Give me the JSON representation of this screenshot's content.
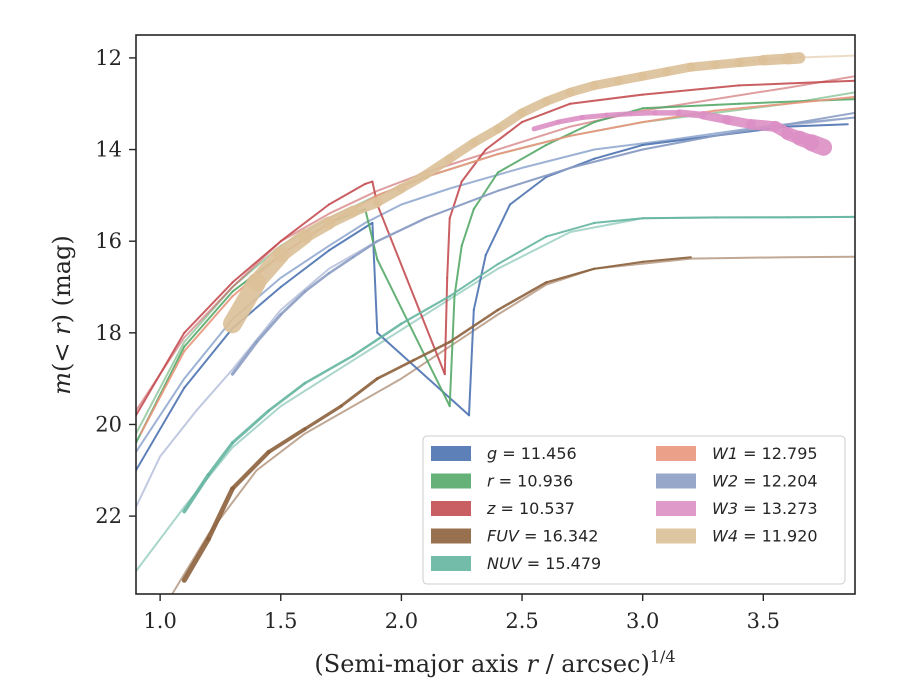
{
  "chart_data": {
    "type": "line",
    "title": "",
    "xlabel": "(Semi-major axis r / arcsec)^1/4",
    "ylabel": "m(< r) (mag)",
    "xlim": [
      0.9,
      3.88
    ],
    "ylim": [
      23.7,
      11.5
    ],
    "y_inverted": true,
    "grid": false,
    "legend_position": "lower-right",
    "legend_columns": 2,
    "xticks": [
      "1.0",
      "1.5",
      "2.0",
      "2.5",
      "3.0",
      "3.5"
    ],
    "yticks": [
      "12",
      "14",
      "16",
      "18",
      "20",
      "22"
    ],
    "series": [
      {
        "name": "g = 11.456",
        "var": "g",
        "value": "11.456",
        "color": "#4c72b0",
        "x": [
          0.9,
          1.1,
          1.3,
          1.5,
          1.7,
          1.85,
          1.88,
          1.9,
          2.28,
          2.3,
          2.35,
          2.45,
          2.6,
          2.8,
          3.0,
          3.3,
          3.6,
          3.85
        ],
        "y": [
          21.0,
          19.2,
          17.9,
          17.0,
          16.2,
          15.7,
          15.6,
          18.0,
          19.8,
          17.5,
          16.3,
          15.2,
          14.6,
          14.2,
          13.9,
          13.7,
          13.5,
          13.45
        ],
        "ghost": {
          "x": [
            0.9,
            1.1,
            1.3,
            1.5,
            1.7,
            1.85,
            2.0,
            2.2,
            2.5,
            2.8,
            3.1,
            3.5,
            3.88
          ],
          "y": [
            20.6,
            19.0,
            17.7,
            16.8,
            16.1,
            15.6,
            15.2,
            14.85,
            14.4,
            14.0,
            13.8,
            13.5,
            13.3
          ]
        }
      },
      {
        "name": "r = 10.936",
        "var": "r",
        "value": "10.936",
        "color": "#55a868",
        "x": [
          0.9,
          1.1,
          1.3,
          1.5,
          1.7,
          1.85,
          1.9,
          2.2,
          2.22,
          2.25,
          2.3,
          2.4,
          2.6,
          2.8,
          3.0,
          3.4,
          3.88
        ],
        "y": [
          20.4,
          18.3,
          17.1,
          16.3,
          15.6,
          15.3,
          16.4,
          19.6,
          17.2,
          16.1,
          15.3,
          14.5,
          13.9,
          13.4,
          13.1,
          13.0,
          12.9
        ],
        "ghost": {
          "x": [
            0.9,
            1.1,
            1.3,
            1.5,
            1.7,
            1.9,
            2.1,
            2.4,
            2.7,
            3.0,
            3.3,
            3.6,
            3.88
          ],
          "y": [
            20.2,
            18.2,
            17.0,
            16.1,
            15.5,
            15.0,
            14.6,
            14.1,
            13.7,
            13.4,
            13.2,
            13.0,
            12.75
          ]
        }
      },
      {
        "name": "z = 10.537",
        "var": "z",
        "value": "10.537",
        "color": "#c44e52",
        "x": [
          0.9,
          1.1,
          1.3,
          1.5,
          1.7,
          1.85,
          1.88,
          1.9,
          2.18,
          2.19,
          2.2,
          2.25,
          2.35,
          2.5,
          2.7,
          3.0,
          3.4,
          3.88
        ],
        "y": [
          19.8,
          18.0,
          16.9,
          16.0,
          15.2,
          14.75,
          14.7,
          15.2,
          18.9,
          16.8,
          15.5,
          14.7,
          14.0,
          13.4,
          13.0,
          12.8,
          12.6,
          12.5
        ],
        "ghost": {
          "x": [
            0.9,
            1.1,
            1.3,
            1.5,
            1.7,
            1.9,
            2.1,
            2.4,
            2.7,
            3.0,
            3.3,
            3.6,
            3.88
          ],
          "y": [
            19.7,
            18.1,
            17.0,
            16.0,
            15.4,
            14.9,
            14.5,
            14.0,
            13.5,
            13.15,
            12.9,
            12.65,
            12.4
          ]
        }
      },
      {
        "name": "FUV = 16.342",
        "var": "FUV",
        "value": "16.342",
        "color": "#8c613c",
        "x": [
          1.1,
          1.2,
          1.3,
          1.45,
          1.6,
          1.75,
          1.9,
          2.05,
          2.2,
          2.4,
          2.6,
          2.8,
          3.0,
          3.2
        ],
        "y": [
          23.4,
          22.5,
          21.4,
          20.6,
          20.1,
          19.6,
          19.0,
          18.6,
          18.2,
          17.5,
          16.9,
          16.6,
          16.45,
          16.35
        ],
        "widths": [
          5,
          5,
          4.5,
          4,
          3.5,
          3,
          3,
          2.5,
          2.5,
          2.5,
          2.5,
          2,
          2,
          2
        ],
        "ghost": {
          "x": [
            1.05,
            1.2,
            1.4,
            1.6,
            1.8,
            2.0,
            2.2,
            2.4,
            2.6,
            2.8,
            3.2,
            3.6,
            3.88
          ],
          "y": [
            23.7,
            22.4,
            21.0,
            20.2,
            19.6,
            19.0,
            18.3,
            17.6,
            16.95,
            16.6,
            16.38,
            16.35,
            16.34
          ]
        }
      },
      {
        "name": "NUV = 15.479",
        "var": "NUV",
        "value": "15.479",
        "color": "#64b5a0",
        "x": [
          1.1,
          1.2,
          1.3,
          1.45,
          1.6,
          1.8,
          2.0,
          2.2,
          2.4,
          2.6,
          2.8,
          3.0,
          3.3,
          3.6,
          3.88
        ],
        "y": [
          21.9,
          21.1,
          20.4,
          19.7,
          19.1,
          18.5,
          17.8,
          17.2,
          16.5,
          15.9,
          15.6,
          15.5,
          15.48,
          15.48,
          15.47
        ],
        "widths": [
          4,
          3.5,
          3,
          3,
          2.5,
          2.5,
          2.5,
          2,
          2,
          2,
          2,
          2,
          2,
          2,
          2
        ],
        "ghost": {
          "x": [
            0.9,
            1.1,
            1.3,
            1.5,
            1.8,
            2.1,
            2.4,
            2.7,
            3.0,
            3.4,
            3.88
          ],
          "y": [
            23.2,
            21.8,
            20.5,
            19.6,
            18.6,
            17.6,
            16.6,
            15.8,
            15.5,
            15.48,
            15.47
          ]
        }
      },
      {
        "name": "W1 = 12.795",
        "var": "W1",
        "value": "12.795",
        "color": "#e8967c",
        "x": [
          0.92,
          1.1,
          1.3,
          1.5,
          1.7,
          1.9,
          2.1,
          2.4,
          2.7,
          3.0,
          3.3,
          3.6,
          3.88
        ],
        "y": [
          20.2,
          18.4,
          17.2,
          16.3,
          15.6,
          15.0,
          14.6,
          14.1,
          13.7,
          13.4,
          13.15,
          13.0,
          12.85
        ],
        "ghost": null
      },
      {
        "name": "W2 = 12.204",
        "var": "W2",
        "value": "12.204",
        "color": "#8c9dc4",
        "x": [
          1.3,
          1.4,
          1.5,
          1.6,
          1.7,
          1.8,
          1.9,
          2.1,
          2.4,
          2.7,
          3.0,
          3.3,
          3.6,
          3.88
        ],
        "y": [
          18.9,
          18.2,
          17.6,
          17.1,
          16.7,
          16.35,
          16.0,
          15.5,
          14.9,
          14.4,
          14.0,
          13.7,
          13.45,
          13.2
        ],
        "widths": [
          3.5,
          3,
          3,
          2.5,
          2.5,
          2.5,
          2.5,
          2,
          2,
          2,
          2,
          2,
          2,
          2
        ],
        "ghost": {
          "x": [
            0.9,
            1.0,
            1.15,
            1.3,
            1.5,
            1.7,
            1.9,
            2.1,
            2.4,
            2.7,
            3.0,
            3.4,
            3.88
          ],
          "y": [
            21.8,
            20.7,
            19.7,
            18.8,
            17.5,
            16.6,
            16.0,
            15.5,
            14.9,
            14.4,
            14.0,
            13.6,
            13.3
          ]
        }
      },
      {
        "name": "W3 = 13.273",
        "var": "W3",
        "value": "13.273",
        "color": "#dc8fc4",
        "x": [
          2.55,
          2.65,
          2.75,
          2.85,
          2.95,
          3.05,
          3.15,
          3.25,
          3.35,
          3.45,
          3.55,
          3.6,
          3.65,
          3.7,
          3.75
        ],
        "y": [
          13.55,
          13.4,
          13.3,
          13.25,
          13.22,
          13.2,
          13.2,
          13.25,
          13.35,
          13.45,
          13.5,
          13.65,
          13.75,
          13.85,
          13.95
        ],
        "widths": [
          5,
          5,
          5,
          5,
          5,
          5,
          6,
          8,
          9,
          10,
          11,
          12,
          14,
          16,
          18
        ],
        "ghost": null
      },
      {
        "name": "W4 = 11.920",
        "var": "W4",
        "value": "11.920",
        "color": "#dcc098",
        "x": [
          1.3,
          1.4,
          1.5,
          1.6,
          1.7,
          1.8,
          1.9,
          2.0,
          2.1,
          2.2,
          2.3,
          2.4,
          2.5,
          2.6,
          2.7,
          2.8,
          2.9,
          3.0,
          3.1,
          3.2,
          3.3,
          3.4,
          3.5,
          3.6,
          3.65
        ],
        "y": [
          17.8,
          16.9,
          16.3,
          15.9,
          15.6,
          15.35,
          15.15,
          14.85,
          14.55,
          14.2,
          13.85,
          13.55,
          13.2,
          12.95,
          12.75,
          12.6,
          12.5,
          12.4,
          12.3,
          12.2,
          12.15,
          12.1,
          12.05,
          12.02,
          12.0
        ],
        "widths": [
          20,
          18,
          16,
          14,
          12,
          11,
          10,
          9,
          9,
          9,
          9,
          9,
          9,
          9,
          9,
          9,
          9,
          9,
          9,
          9,
          9,
          9,
          10,
          11,
          12
        ],
        "ghost": {
          "x": [
            3.4,
            3.6,
            3.88
          ],
          "y": [
            12.1,
            12.0,
            11.95
          ]
        }
      }
    ]
  }
}
